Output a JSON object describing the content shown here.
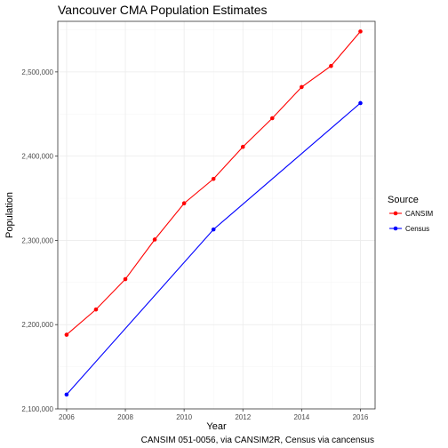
{
  "chart_data": {
    "type": "line",
    "title": "Vancouver CMA Population Estimates",
    "xlabel": "Year",
    "ylabel": "Population",
    "caption": "CANSIM 051-0056, via CANSIM2R, Census via cancensus",
    "xlim": [
      2005.7,
      2016.5
    ],
    "ylim": [
      2100000,
      2560000
    ],
    "x_ticks": [
      2006,
      2008,
      2010,
      2012,
      2014,
      2016
    ],
    "x_tick_labels": [
      "2006",
      "2008",
      "2010",
      "2012",
      "2014",
      "2016"
    ],
    "y_ticks": [
      2100000,
      2200000,
      2300000,
      2400000,
      2500000
    ],
    "y_tick_labels": [
      "2,100,000",
      "2,200,000",
      "2,300,000",
      "2,400,000",
      "2,500,000"
    ],
    "grid": true,
    "legend": {
      "title": "Source",
      "position": "right"
    },
    "series": [
      {
        "name": "CANSIM",
        "color": "#ff0000",
        "x": [
          2006,
          2007,
          2008,
          2009,
          2010,
          2011,
          2012,
          2013,
          2014,
          2015,
          2016
        ],
        "y": [
          2188000,
          2218000,
          2254000,
          2301000,
          2344000,
          2373000,
          2411000,
          2445000,
          2482000,
          2507000,
          2548000
        ]
      },
      {
        "name": "Census",
        "color": "#0000ff",
        "x": [
          2006,
          2011,
          2016
        ],
        "y": [
          2117000,
          2313000,
          2463000
        ]
      }
    ]
  }
}
